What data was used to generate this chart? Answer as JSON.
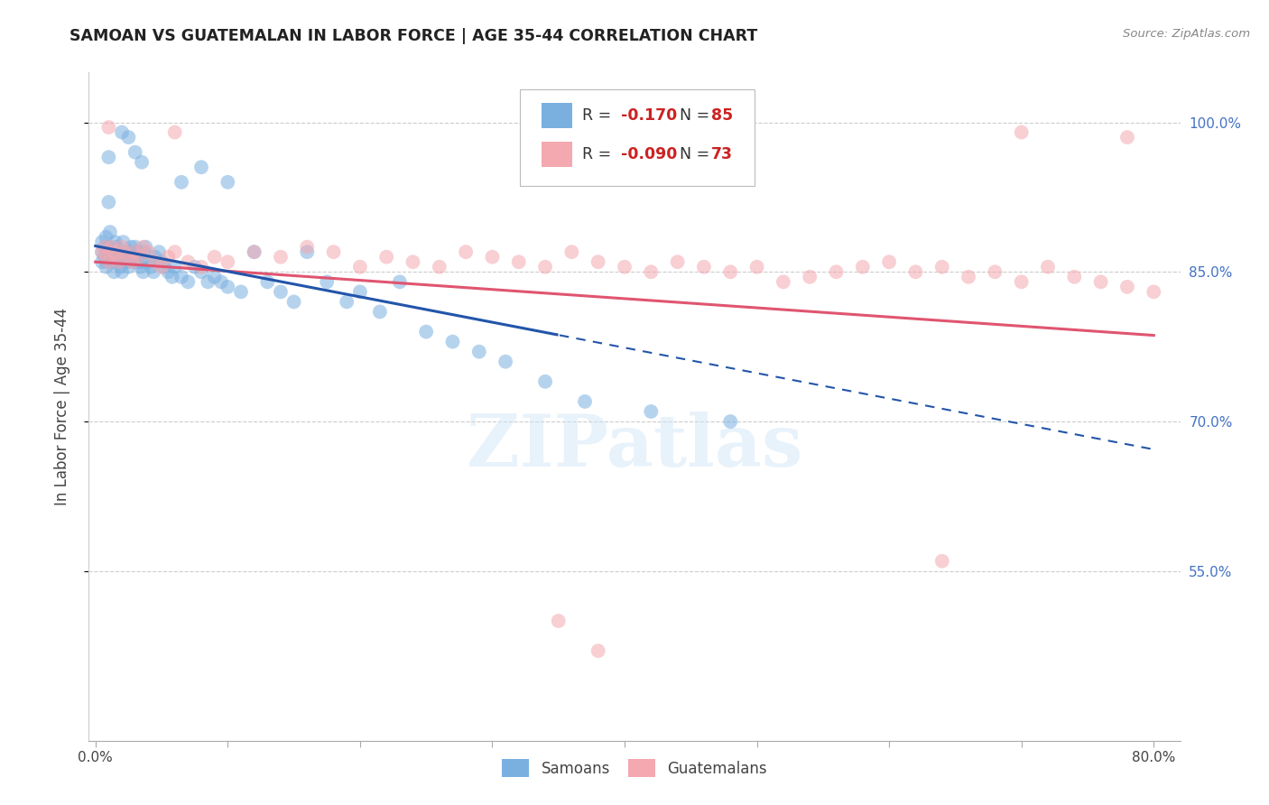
{
  "title": "SAMOAN VS GUATEMALAN IN LABOR FORCE | AGE 35-44 CORRELATION CHART",
  "source": "Source: ZipAtlas.com",
  "ylabel": "In Labor Force | Age 35-44",
  "x_tick_labels": [
    "0.0%",
    "",
    "",
    "",
    "",
    "",
    "",
    "",
    "80.0%"
  ],
  "x_tick_values": [
    0.0,
    0.1,
    0.2,
    0.3,
    0.4,
    0.5,
    0.6,
    0.7,
    0.8
  ],
  "y_tick_labels": [
    "100.0%",
    "85.0%",
    "70.0%",
    "55.0%"
  ],
  "y_tick_values": [
    1.0,
    0.85,
    0.7,
    0.55
  ],
  "xlim": [
    -0.005,
    0.82
  ],
  "ylim": [
    0.38,
    1.05
  ],
  "blue_color": "#7ab0e0",
  "pink_color": "#f4a8b0",
  "blue_line_color": "#2255aa",
  "pink_line_color": "#e05570",
  "blue_R": -0.17,
  "blue_N": 85,
  "pink_R": -0.09,
  "pink_N": 73,
  "watermark": "ZIPatlas",
  "background_color": "#ffffff",
  "grid_color": "#cccccc"
}
